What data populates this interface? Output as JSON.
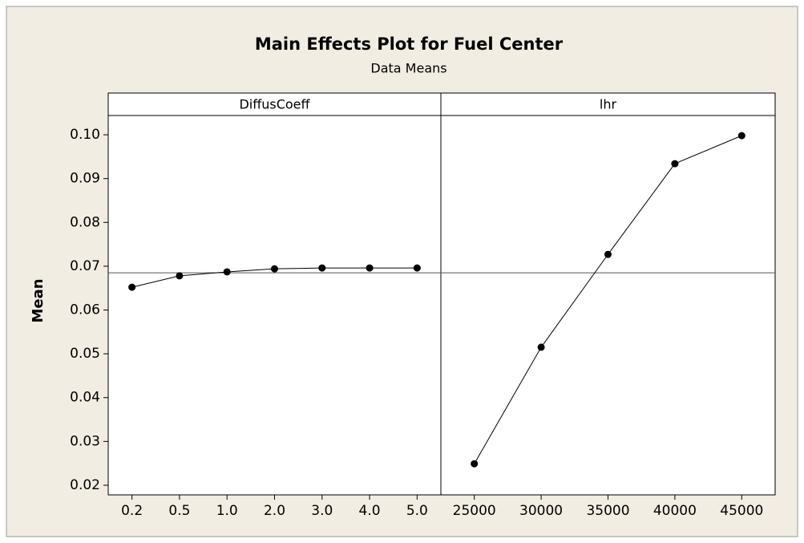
{
  "chart_data": {
    "type": "line",
    "title": "Main Effects Plot for Fuel Center",
    "subtitle": "Data Means",
    "ylabel": "Mean",
    "ylim": [
      0.0178,
      0.1044
    ],
    "yticks": [
      0.02,
      0.03,
      0.04,
      0.05,
      0.06,
      0.07,
      0.08,
      0.09,
      {
        "value": 0.1,
        "label": "0.10"
      }
    ],
    "reference_line": 0.0685,
    "color": "#000000",
    "panels": [
      {
        "name": "DiffusCoeff",
        "categories": [
          "0.2",
          "0.5",
          "1.0",
          "2.0",
          "3.0",
          "4.0",
          "5.0"
        ],
        "values": [
          0.0652,
          0.0678,
          0.0687,
          0.0694,
          0.0696,
          0.0696,
          0.0696
        ]
      },
      {
        "name": "lhr",
        "categories": [
          25000,
          30000,
          35000,
          40000,
          45000
        ],
        "values": [
          0.0249,
          0.0515,
          0.0727,
          0.0934,
          0.0998
        ]
      }
    ]
  }
}
